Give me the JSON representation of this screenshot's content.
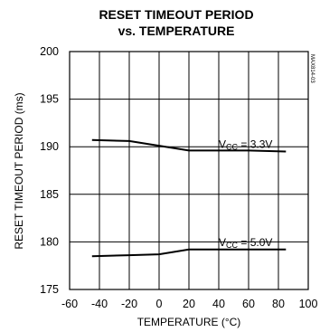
{
  "chart_data": {
    "type": "line",
    "title_line1": "RESET TIMEOUT PERIOD",
    "title_line2": "vs. TEMPERATURE",
    "xlabel": "TEMPERATURE (°C)",
    "ylabel": "RESET TIMEOUT PERIOD (ms)",
    "xlim": [
      -60,
      100
    ],
    "ylim": [
      175,
      200
    ],
    "x_ticks": [
      -60,
      -40,
      -20,
      0,
      20,
      40,
      60,
      80,
      100
    ],
    "y_ticks": [
      175,
      180,
      185,
      190,
      195,
      200
    ],
    "grid": true,
    "series": [
      {
        "label_main": "V",
        "label_sub": "CC",
        "label_rest": " = 3.3V",
        "x": [
          -45,
          -20,
          0,
          20,
          40,
          60,
          85
        ],
        "y": [
          190.7,
          190.6,
          190.1,
          189.6,
          189.6,
          189.6,
          189.5
        ]
      },
      {
        "label_main": "V",
        "label_sub": "CC",
        "label_rest": " = 5.0V",
        "x": [
          -45,
          -20,
          0,
          20,
          40,
          60,
          85
        ],
        "y": [
          178.5,
          178.6,
          178.7,
          179.2,
          179.2,
          179.2,
          179.2
        ]
      }
    ],
    "figure_code": "MAX814-03"
  }
}
